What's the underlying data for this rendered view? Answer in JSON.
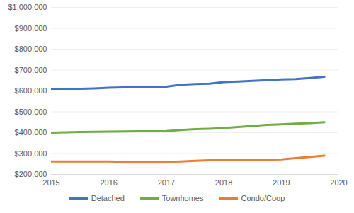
{
  "chart_data": {
    "type": "line",
    "x": [
      2015,
      2015.25,
      2015.5,
      2015.75,
      2016,
      2016.25,
      2016.5,
      2016.75,
      2017,
      2017.25,
      2017.5,
      2017.75,
      2018,
      2018.25,
      2018.5,
      2018.75,
      2019,
      2019.25,
      2019.5,
      2019.75
    ],
    "series": [
      {
        "name": "Detached",
        "color": "#4472c4",
        "values": [
          610000,
          610000,
          610000,
          612000,
          615000,
          617000,
          620000,
          620000,
          620000,
          630000,
          633000,
          635000,
          642000,
          645000,
          648000,
          652000,
          655000,
          657000,
          662000,
          668000
        ]
      },
      {
        "name": "Townhomes",
        "color": "#70ad47",
        "values": [
          400000,
          402000,
          403000,
          404000,
          405000,
          406000,
          407000,
          407000,
          408000,
          413000,
          417000,
          419000,
          422000,
          427000,
          432000,
          437000,
          440000,
          443000,
          446000,
          450000
        ]
      },
      {
        "name": "Condo/Coop",
        "color": "#ed7d31",
        "values": [
          262000,
          262000,
          262000,
          262000,
          262000,
          260000,
          258000,
          258000,
          260000,
          262000,
          265000,
          268000,
          270000,
          270000,
          270000,
          270000,
          272000,
          278000,
          284000,
          290000
        ]
      }
    ],
    "xlim": [
      2015,
      2020
    ],
    "xticks": [
      2015,
      2016,
      2017,
      2018,
      2019,
      2020
    ],
    "ylim": [
      200000,
      1000000
    ],
    "yticks": [
      {
        "value": 200000,
        "label": "$200,000"
      },
      {
        "value": 300000,
        "label": "$300,000"
      },
      {
        "value": 400000,
        "label": "$400,000"
      },
      {
        "value": 500000,
        "label": "$500,000"
      },
      {
        "value": 600000,
        "label": "$600,000"
      },
      {
        "value": 700000,
        "label": "$700,000"
      },
      {
        "value": 800000,
        "label": "$800,000"
      },
      {
        "value": 900000,
        "label": "$900,000"
      },
      {
        "value": 1000000,
        "label": "$1,000,000"
      }
    ],
    "grid": true,
    "legend": "bottom"
  }
}
